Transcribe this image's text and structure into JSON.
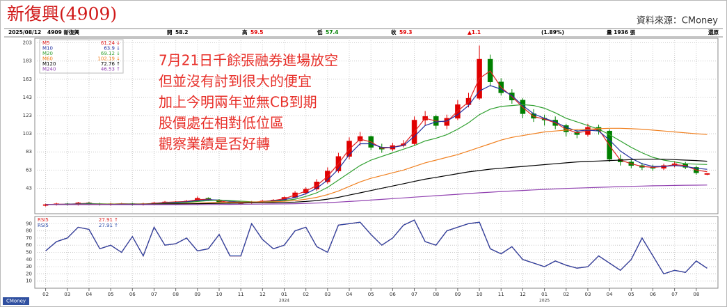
{
  "header": {
    "title": "新復興(4909)",
    "source": "資料來源：CMoney"
  },
  "info_bar": [
    {
      "text": "2025/08/12",
      "color": "#000000"
    },
    {
      "text": "4909 新復興",
      "color": "#000000"
    },
    {
      "text": "開",
      "color": "#000000"
    },
    {
      "text": "58.2",
      "color": "#000000"
    },
    {
      "text": "高",
      "color": "#000000"
    },
    {
      "text": "59.5",
      "color": "#e00000"
    },
    {
      "text": "低",
      "color": "#000000"
    },
    {
      "text": "57.4",
      "color": "#008000"
    },
    {
      "text": "收",
      "color": "#000000"
    },
    {
      "text": "59.3",
      "color": "#e00000"
    },
    {
      "text": "▲1.1",
      "color": "#e00000"
    },
    {
      "text": "(1.89%)",
      "color": "#000000"
    },
    {
      "text": "量 1936 張",
      "color": "#000000"
    },
    {
      "text": "還原",
      "color": "#000000"
    }
  ],
  "annotation": [
    "7月21日千餘張融券進場放空",
    "但並沒有討到很大的便宜",
    "加上今明兩年並無CB到期",
    "股價處在相對低位區",
    "觀察業績是否好轉"
  ],
  "footer_logo": "CMoney",
  "chart_data": [
    {
      "type": "candlestick",
      "up_color": "#e00000",
      "down_color": "#008000",
      "grid": true,
      "xlim": [
        -1,
        62
      ],
      "ylim": [
        15,
        208
      ],
      "yticks": [
        43,
        63,
        83,
        103,
        123,
        143,
        163,
        183,
        203
      ],
      "open": [
        24,
        25,
        26,
        25,
        27,
        26,
        25,
        26,
        26,
        25,
        26,
        27,
        28,
        28,
        29,
        32,
        30,
        28,
        27,
        27,
        28,
        29,
        30,
        33,
        38,
        42,
        50,
        62,
        78,
        95,
        100,
        88,
        86,
        90,
        92,
        118,
        122,
        112,
        120,
        135,
        142,
        185,
        160,
        148,
        140,
        125,
        120,
        118,
        112,
        105,
        102,
        110,
        106,
        75,
        72,
        68,
        66,
        65,
        68,
        70,
        66,
        58.2
      ],
      "high": [
        26,
        27,
        27,
        28,
        28,
        27,
        27,
        27,
        27,
        27,
        28,
        29,
        29,
        30,
        34,
        33,
        31,
        29,
        28,
        29,
        30,
        31,
        34,
        40,
        44,
        53,
        66,
        82,
        99,
        105,
        101,
        92,
        93,
        96,
        122,
        128,
        124,
        124,
        140,
        148,
        200,
        190,
        164,
        152,
        142,
        130,
        124,
        122,
        114,
        108,
        114,
        113,
        108,
        80,
        75,
        71,
        69,
        70,
        73,
        72,
        68,
        59.5
      ],
      "low": [
        23,
        24,
        24,
        24,
        25,
        24,
        24,
        25,
        24,
        24,
        25,
        26,
        27,
        27,
        28,
        29,
        27,
        26,
        26,
        26,
        27,
        28,
        29,
        32,
        36,
        40,
        48,
        60,
        75,
        90,
        85,
        82,
        84,
        88,
        90,
        112,
        108,
        108,
        118,
        132,
        140,
        155,
        145,
        136,
        120,
        116,
        112,
        108,
        100,
        98,
        100,
        102,
        72,
        68,
        65,
        63,
        62,
        63,
        66,
        64,
        58,
        57.4
      ],
      "close": [
        25,
        26,
        25,
        27,
        26,
        25,
        26,
        26,
        25,
        26,
        27,
        28,
        28,
        29,
        32,
        30,
        28,
        27,
        27,
        28,
        29,
        30,
        33,
        38,
        42,
        50,
        62,
        78,
        95,
        100,
        88,
        86,
        90,
        92,
        118,
        122,
        112,
        120,
        135,
        142,
        185,
        160,
        148,
        140,
        125,
        120,
        118,
        112,
        105,
        102,
        110,
        106,
        75,
        72,
        68,
        66,
        65,
        68,
        70,
        66,
        60,
        59.3
      ],
      "series": [
        {
          "name": "M5",
          "color": "#e02020",
          "legend_label": "61.24 ↓",
          "values": [
            25,
            25.5,
            25.5,
            26,
            26.5,
            25.5,
            25.5,
            26,
            25.5,
            25.5,
            26.5,
            27.5,
            28,
            28.5,
            30.5,
            31,
            29,
            27.5,
            27,
            27.5,
            28.5,
            29.5,
            31.5,
            35.5,
            40,
            46,
            56,
            70,
            86,
            97,
            94,
            87,
            88,
            91,
            105,
            120,
            117,
            116,
            128,
            138,
            164,
            172,
            154,
            144,
            132,
            122,
            119,
            115,
            108,
            104,
            106,
            108,
            90,
            74,
            70,
            67,
            66,
            67,
            69,
            68,
            63,
            61.24
          ]
        },
        {
          "name": "M10",
          "color": "#2030a0",
          "legend_label": "63.9 ↓",
          "values": [
            25,
            25.3,
            25.4,
            25.7,
            26,
            25.8,
            25.6,
            25.8,
            25.7,
            25.6,
            26,
            26.8,
            27.5,
            28,
            29.5,
            30.5,
            30,
            28.8,
            27.8,
            27.5,
            28,
            29,
            30.5,
            33,
            37,
            43,
            52,
            64,
            80,
            92,
            92,
            88,
            88,
            90,
            100,
            112,
            116,
            117,
            124,
            134,
            150,
            156,
            152,
            145,
            134,
            125,
            120,
            116,
            110,
            106,
            107,
            106,
            96,
            84,
            76,
            70,
            67,
            67,
            68,
            67,
            65,
            63.9
          ]
        },
        {
          "name": "M20",
          "color": "#30a030",
          "legend_label": "69.12 ↓",
          "values": [
            25,
            25.2,
            25.3,
            25.5,
            25.7,
            25.8,
            25.7,
            25.7,
            25.7,
            25.7,
            25.8,
            26.3,
            26.8,
            27.4,
            28.5,
            29.5,
            30,
            29.5,
            28.8,
            28.2,
            28,
            28.5,
            29.5,
            31,
            34,
            38,
            44,
            52,
            60,
            68,
            74,
            78,
            82,
            86,
            90,
            95,
            98,
            102,
            108,
            115,
            124,
            130,
            133,
            134,
            135,
            134,
            131,
            126,
            120,
            116,
            112,
            108,
            102,
            95,
            88,
            82,
            77,
            74,
            72,
            70,
            69.5,
            69.12
          ]
        },
        {
          "name": "M60",
          "color": "#f08020",
          "legend_label": "102.19 ↓",
          "values": [
            25,
            25,
            25.1,
            25.2,
            25.3,
            25.4,
            25.5,
            25.6,
            25.6,
            25.7,
            25.7,
            25.8,
            26,
            26.3,
            26.7,
            27.2,
            27.5,
            27.7,
            27.8,
            27.9,
            28,
            28.2,
            28.6,
            29.5,
            31,
            33,
            36,
            40,
            45,
            50,
            54,
            57,
            60,
            63,
            67,
            71,
            74,
            77,
            80,
            84,
            88,
            92,
            96,
            99,
            101,
            103,
            105,
            106,
            107,
            107.5,
            108,
            108.5,
            109,
            109,
            108.5,
            108,
            107,
            106,
            105,
            104,
            103,
            102.19
          ]
        },
        {
          "name": "M120",
          "color": "#000000",
          "legend_label": "72.76 ↑",
          "values": [
            25,
            25,
            25,
            25,
            25,
            25.1,
            25.2,
            25.3,
            25.4,
            25.5,
            25.6,
            25.7,
            25.8,
            25.9,
            26,
            26.2,
            26.4,
            26.6,
            26.8,
            27,
            27.1,
            27.2,
            27.4,
            27.8,
            28.5,
            29.5,
            31,
            33,
            35.5,
            38,
            40.5,
            43,
            45.5,
            48,
            50.5,
            53,
            55,
            57,
            59,
            61,
            62.5,
            64,
            65,
            66,
            67,
            68,
            69,
            70,
            71,
            72,
            72.5,
            73,
            73.5,
            74,
            74.5,
            75,
            75,
            75,
            74.5,
            74,
            73.5,
            72.76
          ]
        },
        {
          "name": "M240",
          "color": "#9040b0",
          "legend_label": "46.53 ↑",
          "values": [
            25,
            25,
            25,
            25,
            25,
            25,
            25,
            25,
            25,
            25,
            25,
            25,
            25,
            25,
            25,
            25.1,
            25.2,
            25.3,
            25.4,
            25.5,
            25.6,
            25.7,
            25.8,
            26,
            26.3,
            26.7,
            27.2,
            27.8,
            28.5,
            29.2,
            30,
            30.8,
            31.6,
            32.4,
            33.2,
            34,
            34.8,
            35.6,
            36.4,
            37.2,
            38,
            38.7,
            39.4,
            40,
            40.6,
            41.2,
            41.8,
            42.3,
            42.8,
            43.2,
            43.6,
            44,
            44.4,
            44.8,
            45.1,
            45.4,
            45.7,
            45.9,
            46.1,
            46.3,
            46.4,
            46.53
          ]
        }
      ]
    },
    {
      "type": "line",
      "grid": true,
      "xlim": [
        -1,
        62
      ],
      "ylim": [
        0,
        100
      ],
      "yticks": [
        10,
        20,
        30,
        40,
        50,
        60,
        70,
        80,
        90
      ],
      "xticks": [
        {
          "value": 0,
          "label": "02"
        },
        {
          "value": 2,
          "label": "03"
        },
        {
          "value": 4,
          "label": "04"
        },
        {
          "value": 6,
          "label": "05"
        },
        {
          "value": 8,
          "label": "06"
        },
        {
          "value": 10,
          "label": "07"
        },
        {
          "value": 12,
          "label": "08"
        },
        {
          "value": 14,
          "label": "09"
        },
        {
          "value": 16,
          "label": "10"
        },
        {
          "value": 18,
          "label": "11"
        },
        {
          "value": 20,
          "label": "12"
        },
        {
          "value": 22,
          "label": "01"
        },
        {
          "value": 24,
          "label": "02"
        },
        {
          "value": 26,
          "label": "03"
        },
        {
          "value": 28,
          "label": "04"
        },
        {
          "value": 30,
          "label": "05"
        },
        {
          "value": 32,
          "label": "06"
        },
        {
          "value": 34,
          "label": "07"
        },
        {
          "value": 36,
          "label": "08"
        },
        {
          "value": 38,
          "label": "09"
        },
        {
          "value": 40,
          "label": "10"
        },
        {
          "value": 42,
          "label": "11"
        },
        {
          "value": 44,
          "label": "12"
        },
        {
          "value": 46,
          "label": "01"
        },
        {
          "value": 48,
          "label": "02"
        },
        {
          "value": 50,
          "label": "03"
        },
        {
          "value": 52,
          "label": "04"
        },
        {
          "value": 54,
          "label": "05"
        },
        {
          "value": 56,
          "label": "06"
        },
        {
          "value": 58,
          "label": "07"
        },
        {
          "value": 60,
          "label": "08"
        }
      ],
      "x_year_labels": [
        {
          "value": 22,
          "label": "2024"
        },
        {
          "value": 46,
          "label": "2025"
        }
      ],
      "series": [
        {
          "name": "RSI5",
          "color": "#e02020",
          "legend_label": "27.91 ↑",
          "values": [
            52,
            65,
            70,
            85,
            82,
            55,
            60,
            50,
            72,
            45,
            85,
            60,
            62,
            70,
            52,
            55,
            75,
            45,
            45,
            90,
            68,
            55,
            60,
            80,
            85,
            58,
            50,
            88,
            90,
            92,
            75,
            60,
            70,
            88,
            95,
            65,
            60,
            80,
            85,
            90,
            92,
            55,
            48,
            58,
            40,
            35,
            30,
            38,
            32,
            28,
            30,
            45,
            35,
            25,
            40,
            70,
            45,
            20,
            25,
            22,
            38,
            27.91
          ]
        },
        {
          "name": "RSI5",
          "color": "#2848a8",
          "legend_label": "27.91 ↑",
          "values": [
            52,
            65,
            70,
            85,
            82,
            55,
            60,
            50,
            72,
            45,
            85,
            60,
            62,
            70,
            52,
            55,
            75,
            45,
            45,
            90,
            68,
            55,
            60,
            80,
            85,
            58,
            50,
            88,
            90,
            92,
            75,
            60,
            70,
            88,
            95,
            65,
            60,
            80,
            85,
            90,
            92,
            55,
            48,
            58,
            40,
            35,
            30,
            38,
            32,
            28,
            30,
            45,
            35,
            25,
            40,
            70,
            45,
            20,
            25,
            22,
            38,
            27.91
          ]
        }
      ]
    }
  ]
}
